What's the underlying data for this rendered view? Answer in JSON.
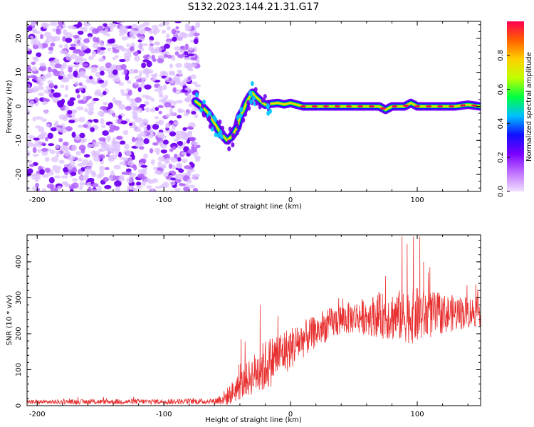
{
  "title": "S132.2023.144.21.31.G17",
  "chart_data": [
    {
      "type": "heatmap",
      "name": "spectrogram",
      "xlabel": "Height of straight line (km)",
      "ylabel": "Frequency (Hz)",
      "xlim": [
        -208,
        150
      ],
      "ylim": [
        -25,
        25
      ],
      "x_ticks": [
        -200,
        -100,
        0,
        100
      ],
      "y_ticks": [
        -20,
        -10,
        0,
        10,
        20
      ],
      "colorbar": {
        "label": "Normalized spectral amplitude",
        "range": [
          0.0,
          1.0
        ],
        "ticks": [
          "0.0",
          "0.2",
          "0.4",
          "0.6",
          "0.8"
        ],
        "tick_values": [
          0.0,
          0.2,
          0.4,
          0.6,
          0.8
        ],
        "colors": [
          "#f0e0ff",
          "#c070ff",
          "#7a00ff",
          "#1010ff",
          "#00c0ff",
          "#00ff40",
          "#c0ff00",
          "#ffd000",
          "#ff6000",
          "#ff0050"
        ]
      },
      "noise_region_x": [
        -208,
        -73
      ],
      "ridge": {
        "x": [
          -75,
          -70,
          -65,
          -60,
          -55,
          -50,
          -47,
          -45,
          -42,
          -40,
          -37,
          -35,
          -32,
          -30,
          -28,
          -25,
          -22,
          -20,
          -15,
          -10,
          -5,
          0,
          5,
          10,
          20,
          30,
          40,
          50,
          60,
          70,
          75,
          80,
          90,
          95,
          100,
          110,
          120,
          130,
          140,
          150
        ],
        "freq": [
          1.5,
          0,
          -2,
          -5,
          -8,
          -10,
          -9,
          -8,
          -6,
          -3,
          -1,
          1,
          3,
          4,
          3,
          2,
          1,
          0.5,
          0.8,
          1,
          0.6,
          1,
          0.5,
          0,
          0,
          0,
          0,
          0,
          0,
          0,
          -1,
          0,
          0,
          1,
          0,
          0,
          0,
          0,
          0.5,
          0
        ]
      }
    },
    {
      "type": "line",
      "name": "snr",
      "xlabel": "Height of straight line (km)",
      "ylabel": "SNR (10 * v/v)",
      "xlim": [
        -208,
        150
      ],
      "ylim": [
        0,
        475
      ],
      "x_ticks": [
        -200,
        -100,
        0,
        100
      ],
      "y_ticks": [
        0,
        100,
        200,
        300,
        400
      ],
      "color": "#e83030",
      "trend": {
        "x": [
          -208,
          -60,
          -50,
          -40,
          -30,
          -20,
          -10,
          0,
          10,
          20,
          30,
          40,
          60,
          80,
          100,
          120,
          140,
          150
        ],
        "y": [
          10,
          12,
          25,
          55,
          85,
          110,
          140,
          160,
          185,
          205,
          225,
          240,
          250,
          250,
          250,
          255,
          260,
          260
        ]
      },
      "noise_amplitude": {
        "x": [
          -208,
          -60,
          -50,
          -30,
          -20,
          0,
          20,
          50,
          80,
          100,
          120,
          150
        ],
        "y": [
          6,
          8,
          25,
          55,
          75,
          60,
          45,
          45,
          70,
          80,
          55,
          40
        ]
      },
      "spikes": [
        {
          "x": -24,
          "y": 280
        },
        {
          "x": -39,
          "y": 185
        },
        {
          "x": -10,
          "y": 250
        },
        {
          "x": 88,
          "y": 470
        },
        {
          "x": 92,
          "y": 450
        },
        {
          "x": 97,
          "y": 470
        },
        {
          "x": 102,
          "y": 470
        },
        {
          "x": 105,
          "y": 400
        },
        {
          "x": 110,
          "y": 385
        },
        {
          "x": 75,
          "y": 360
        }
      ]
    }
  ]
}
